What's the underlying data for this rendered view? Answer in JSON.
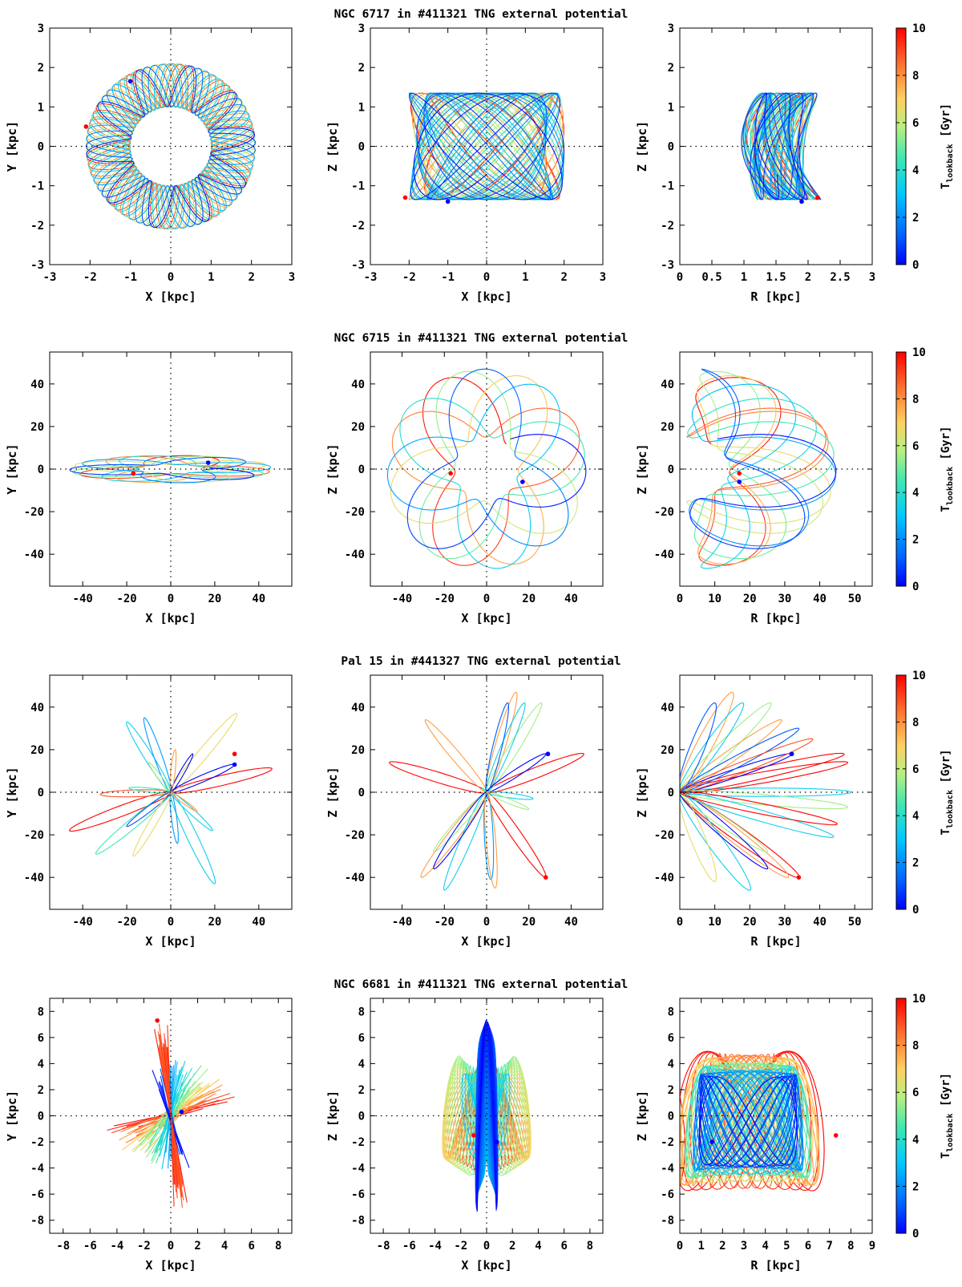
{
  "figure": {
    "colorbar": {
      "label_main": "T",
      "label_sub": "lookback",
      "label_unit": " [Gyr]",
      "range": [
        0,
        10
      ],
      "ticks": [
        0,
        2,
        4,
        6,
        8,
        10
      ],
      "colormap": "jet",
      "colors": [
        "#0000ff",
        "#00a0ff",
        "#28e0c8",
        "#c8f080",
        "#ffc050",
        "#ff6030",
        "#ff0000"
      ]
    }
  },
  "chart_data": [
    {
      "title": "NGC 6717 in #411321 TNG external potential",
      "panels": [
        {
          "type": "line",
          "view": "xy",
          "xlabel": "X [kpc]",
          "ylabel": "Y [kpc]",
          "xlim": [
            -3,
            3
          ],
          "ylim": [
            -3,
            3
          ],
          "xticks": [
            "-3",
            "-2",
            "-1",
            "0",
            "1",
            "2",
            "3"
          ],
          "yticks": [
            "-3",
            "-2",
            "-1",
            "0",
            "1",
            "2",
            "3"
          ],
          "start": [
            -2.1,
            0.5
          ],
          "end": [
            -1.0,
            1.65
          ],
          "orbit": {
            "kind": "rosette",
            "rmin": 1.0,
            "rmax": 2.1,
            "nrad": 19.7,
            "ratio": 1.0,
            "phase": 0.4,
            "cycles": 14
          }
        },
        {
          "type": "line",
          "view": "xz",
          "xlabel": "X [kpc]",
          "ylabel": "Z [kpc]",
          "xlim": [
            -3,
            3
          ],
          "ylim": [
            -3,
            3
          ],
          "xticks": [
            "-3",
            "-2",
            "-1",
            "0",
            "1",
            "2",
            "3"
          ],
          "yticks": [
            "-3",
            "-2",
            "-1",
            "0",
            "1",
            "2",
            "3"
          ],
          "start": [
            -2.1,
            -1.3
          ],
          "end": [
            -1.0,
            -1.4
          ],
          "orbit": {
            "kind": "box",
            "ax": 2.0,
            "az": 1.35,
            "fx": 1.0,
            "fz": 1.37,
            "cycles": 40
          }
        },
        {
          "type": "line",
          "view": "rz",
          "xlabel": "R [kpc]",
          "ylabel": "Z [kpc]",
          "xlim": [
            0,
            3
          ],
          "ylim": [
            -3,
            3
          ],
          "xticks": [
            "0",
            "0.5",
            "1",
            "1.5",
            "2",
            "2.5",
            "3"
          ],
          "yticks": [
            "-3",
            "-2",
            "-1",
            "0",
            "1",
            "2",
            "3"
          ],
          "start": [
            2.15,
            -1.3
          ],
          "end": [
            1.9,
            -1.4
          ],
          "orbit": {
            "kind": "meridional",
            "r0": 1.45,
            "ar": 0.5,
            "az": 1.35,
            "fr": 2.0,
            "fz": 1.37,
            "bend": 0.25,
            "cycles": 40
          }
        }
      ]
    },
    {
      "title": "NGC 6715 in #411321 TNG external potential",
      "panels": [
        {
          "type": "line",
          "view": "xy",
          "xlabel": "X [kpc]",
          "ylabel": "Y [kpc]",
          "xlim": [
            -55,
            55
          ],
          "ylim": [
            -55,
            55
          ],
          "xticks": [
            "-40",
            "-20",
            "0",
            "20",
            "40"
          ],
          "yticks": [
            "-40",
            "-20",
            "0",
            "20",
            "40"
          ],
          "start": [
            -17,
            -2
          ],
          "end": [
            17,
            3
          ],
          "orbit": {
            "kind": "rosette",
            "rmin": 15,
            "rmax": 46,
            "nrad": 5.4,
            "ratio": 0.14,
            "phase": 0.2,
            "cycles": 7
          }
        },
        {
          "type": "line",
          "view": "xz",
          "xlabel": "X [kpc]",
          "ylabel": "Z [kpc]",
          "xlim": [
            -55,
            55
          ],
          "ylim": [
            -55,
            55
          ],
          "xticks": [
            "-40",
            "-20",
            "0",
            "20",
            "40"
          ],
          "yticks": [
            "-40",
            "-20",
            "0",
            "20",
            "40"
          ],
          "start": [
            -17,
            -2
          ],
          "end": [
            17,
            -6
          ],
          "orbit": {
            "kind": "rosette",
            "rmin": 15,
            "rmax": 47,
            "nrad": 5.4,
            "ratio": 1.0,
            "phase": 0.9,
            "cycles": 7
          }
        },
        {
          "type": "line",
          "view": "rz",
          "xlabel": "R [kpc]",
          "ylabel": "Z [kpc]",
          "xlim": [
            0,
            55
          ],
          "ylim": [
            -55,
            55
          ],
          "xticks": [
            "0",
            "10",
            "20",
            "30",
            "40",
            "50"
          ],
          "yticks": [
            "-40",
            "-20",
            "0",
            "20",
            "40"
          ],
          "start": [
            17,
            -2
          ],
          "end": [
            17,
            -6
          ],
          "orbit": {
            "kind": "rz_rosette",
            "rmin": 15,
            "rmax": 47,
            "nrad": 5.4,
            "phase": 0.9,
            "cycles": 7
          }
        }
      ]
    },
    {
      "title": "Pal 15 in #441327 TNG external potential",
      "panels": [
        {
          "type": "line",
          "view": "xy",
          "xlabel": "X [kpc]",
          "ylabel": "Y [kpc]",
          "xlim": [
            -55,
            55
          ],
          "ylim": [
            -55,
            55
          ],
          "xticks": [
            "-40",
            "-20",
            "0",
            "20",
            "40"
          ],
          "yticks": [
            "-40",
            "-20",
            "0",
            "20",
            "40"
          ],
          "start": [
            29,
            18
          ],
          "end": [
            29,
            13
          ],
          "orbit": {
            "kind": "radial",
            "petals": [
              [
                46,
                11,
                1.5,
                9
              ],
              [
                -46,
                -18,
                1.5,
                9
              ],
              [
                30,
                37,
                1.5,
                6
              ],
              [
                -20,
                33,
                1.5,
                3
              ],
              [
                -34,
                -29,
                1.5,
                4
              ],
              [
                20,
                -43,
                1.5,
                3
              ],
              [
                3,
                -24,
                1.5,
                2
              ],
              [
                -12,
                35,
                1.5,
                2
              ],
              [
                -10,
                14,
                1.5,
                5
              ],
              [
                -32,
                -1,
                1.5,
                8
              ],
              [
                -19,
                2,
                1.5,
                4
              ],
              [
                -20,
                -16,
                1.5,
                1
              ],
              [
                -17,
                -30,
                1.5,
                6
              ],
              [
                10,
                18,
                1.5,
                0
              ],
              [
                29,
                13,
                1.5,
                0
              ],
              [
                19,
                -18,
                1.5,
                3
              ],
              [
                2,
                20,
                1.5,
                7
              ],
              [
                12,
                -9,
                1.5,
                7
              ]
            ]
          }
        },
        {
          "type": "line",
          "view": "xz",
          "xlabel": "X [kpc]",
          "ylabel": "Z [kpc]",
          "xlim": [
            -55,
            55
          ],
          "ylim": [
            -55,
            55
          ],
          "xticks": [
            "-40",
            "-20",
            "0",
            "20",
            "40"
          ],
          "yticks": [
            "-40",
            "-20",
            "0",
            "20",
            "40"
          ],
          "start": [
            28,
            -40
          ],
          "end": [
            29,
            18
          ],
          "orbit": {
            "kind": "radial",
            "petals": [
              [
                46,
                18,
                1.5,
                9
              ],
              [
                -46,
                14,
                1.5,
                9
              ],
              [
                28,
                -40,
                1.5,
                9
              ],
              [
                -31,
                -40,
                1.5,
                7
              ],
              [
                14,
                47,
                1.5,
                7
              ],
              [
                26,
                42,
                1.5,
                5
              ],
              [
                -29,
                34,
                1.5,
                7
              ],
              [
                -20,
                -46,
                1.5,
                3
              ],
              [
                -25,
                -28,
                1.5,
                5
              ],
              [
                18,
                42,
                1.5,
                3
              ],
              [
                28,
                18,
                1.5,
                0
              ],
              [
                10,
                42,
                1.5,
                1
              ],
              [
                -25,
                -36,
                1.5,
                0
              ],
              [
                22,
                -3,
                1.5,
                3
              ],
              [
                20,
                -8,
                1.5,
                5
              ],
              [
                2,
                -41,
                1.5,
                2
              ],
              [
                4,
                -45,
                1.5,
                7
              ],
              [
                -2,
                2,
                1.5,
                4
              ]
            ]
          }
        },
        {
          "type": "line",
          "view": "rz",
          "xlabel": "R [kpc]",
          "ylabel": "Z [kpc]",
          "xlim": [
            0,
            55
          ],
          "ylim": [
            -55,
            55
          ],
          "xticks": [
            "0",
            "10",
            "20",
            "30",
            "40",
            "50"
          ],
          "yticks": [
            "-40",
            "-20",
            "0",
            "20",
            "40"
          ],
          "start": [
            34,
            -40
          ],
          "end": [
            32,
            18
          ],
          "orbit": {
            "kind": "radial",
            "petals": [
              [
                49,
                0,
                1.2,
                3
              ],
              [
                47,
                18,
                1.5,
                9
              ],
              [
                48,
                14,
                1.5,
                9
              ],
              [
                34,
                -40,
                1.5,
                9
              ],
              [
                31,
                -40,
                1.5,
                7
              ],
              [
                15,
                47,
                1.5,
                7
              ],
              [
                26,
                42,
                1.5,
                5
              ],
              [
                29,
                34,
                1.5,
                7
              ],
              [
                20,
                -46,
                1.5,
                3
              ],
              [
                25,
                -28,
                1.5,
                5
              ],
              [
                18,
                42,
                1.5,
                3
              ],
              [
                32,
                18,
                1.5,
                0
              ],
              [
                10,
                42,
                1.5,
                1
              ],
              [
                25,
                -36,
                1.5,
                0
              ],
              [
                34,
                30,
                1.5,
                1
              ],
              [
                48,
                -7,
                1.5,
                5
              ],
              [
                44,
                -21,
                1.5,
                3
              ],
              [
                10,
                -42,
                1.5,
                6
              ],
              [
                38,
                25,
                1.5,
                8
              ],
              [
                45,
                -15,
                1.5,
                9
              ]
            ]
          }
        }
      ]
    },
    {
      "title": "NGC 6681 in #411321 TNG external potential",
      "panels": [
        {
          "type": "line",
          "view": "xy",
          "xlabel": "X [kpc]",
          "ylabel": "Y [kpc]",
          "xlim": [
            -9,
            9
          ],
          "ylim": [
            -9,
            9
          ],
          "xticks": [
            "-8",
            "-6",
            "-4",
            "-2",
            "0",
            "2",
            "4",
            "6",
            "8"
          ],
          "yticks": [
            "-8",
            "-6",
            "-4",
            "-2",
            "0",
            "2",
            "4",
            "6",
            "8"
          ],
          "start": [
            -1.0,
            7.3
          ],
          "end": [
            0.8,
            0.3
          ],
          "orbit": {
            "kind": "fan",
            "lines": 60
          }
        },
        {
          "type": "line",
          "view": "xz",
          "xlabel": "X [kpc]",
          "ylabel": "Z [kpc]",
          "xlim": [
            -9,
            9
          ],
          "ylim": [
            -9,
            9
          ],
          "xticks": [
            "-8",
            "-6",
            "-4",
            "-2",
            "0",
            "2",
            "4",
            "6",
            "8"
          ],
          "yticks": [
            "-8",
            "-6",
            "-4",
            "-2",
            "0",
            "2",
            "4",
            "6",
            "8"
          ],
          "start": [
            -1.0,
            -1.5
          ],
          "end": [
            0.8,
            -2.0
          ],
          "orbit": {
            "kind": "hourglass",
            "cycles": 60
          }
        },
        {
          "type": "line",
          "view": "rz",
          "xlabel": "R [kpc]",
          "ylabel": "Z [kpc]",
          "xlim": [
            0,
            9
          ],
          "ylim": [
            -9,
            9
          ],
          "xticks": [
            "0",
            "1",
            "2",
            "3",
            "4",
            "5",
            "6",
            "7",
            "8",
            "9"
          ],
          "yticks": [
            "-8",
            "-6",
            "-4",
            "-2",
            "0",
            "2",
            "4",
            "6",
            "8"
          ],
          "start": [
            7.3,
            -1.5
          ],
          "end": [
            1.5,
            -2.0
          ],
          "orbit": {
            "kind": "rzloops",
            "cycles": 60
          }
        }
      ]
    }
  ]
}
